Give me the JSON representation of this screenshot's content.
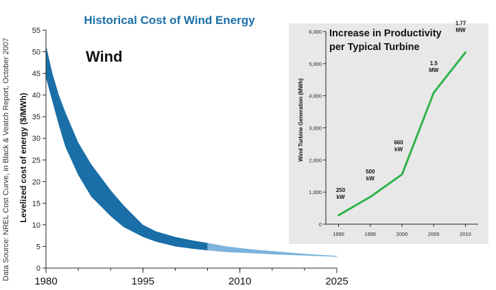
{
  "source_note": "Data Source: NREL Cost Curve, in Black & Veatch Report, October 2007",
  "chart_data": [
    {
      "type": "area",
      "title": "Historical Cost of Wind Energy",
      "annotation": "Wind",
      "ylabel": "Levelized cost of energy ($/MWh)",
      "xlabel": "",
      "x_ticks": [
        "1980",
        "1995",
        "2010",
        "2025"
      ],
      "y_ticks": [
        "0",
        "5",
        "10",
        "15",
        "20",
        "25",
        "30",
        "35",
        "40",
        "45",
        "50",
        "55"
      ],
      "xlim": [
        1980,
        2025
      ],
      "ylim": [
        0,
        55
      ],
      "colors": {
        "historical": "#1a6fa8",
        "projected": "#7bb3dc",
        "title": "#1a6fa8"
      },
      "historical_until": 2005,
      "band": {
        "x": [
          1980,
          1981,
          1982,
          1983,
          1985,
          1987,
          1990,
          1992,
          1995,
          1997,
          2000,
          2003,
          2005,
          2008,
          2012,
          2016,
          2020,
          2025
        ],
        "upper": [
          51.5,
          45,
          40,
          36,
          29,
          24,
          18,
          14.5,
          10,
          8.5,
          7.2,
          6.3,
          5.8,
          5.0,
          4.3,
          3.8,
          3.3,
          2.8
        ],
        "lower": [
          44,
          38.5,
          33,
          28,
          21.5,
          16.5,
          12,
          9.5,
          7.2,
          6.1,
          5.0,
          4.4,
          4.1,
          3.7,
          3.4,
          3.1,
          2.9,
          2.6
        ]
      }
    },
    {
      "type": "line",
      "title": "Increase in Productivity per Typical Turbine",
      "title_lines": [
        "Increase in Productivity",
        "per Typical Turbine"
      ],
      "ylabel": "Wind Turbine Generation (MWh)",
      "x_ticks": [
        "1990",
        "1995",
        "2000",
        "2005",
        "2010"
      ],
      "y_ticks": [
        "0",
        "1,000",
        "2,000",
        "3,000",
        "4,000",
        "5,000",
        "6,000"
      ],
      "xlim": [
        1988,
        2012
      ],
      "ylim": [
        0,
        6000
      ],
      "line_color": "#2db34a",
      "panel_color": "#e8e8e8",
      "x": [
        1990,
        1995,
        2000,
        2005,
        2010
      ],
      "values": [
        280,
        850,
        1550,
        4100,
        5350
      ],
      "annotations": [
        {
          "x": 1990,
          "y": 280,
          "lines": [
            "250",
            "kW"
          ]
        },
        {
          "x": 1995,
          "y": 850,
          "lines": [
            "500",
            "kW"
          ]
        },
        {
          "x": 2000,
          "y": 1550,
          "lines": [
            "660",
            "kW"
          ]
        },
        {
          "x": 2005,
          "y": 4100,
          "lines": [
            "1.5",
            "MW"
          ]
        },
        {
          "x": 2010,
          "y": 5350,
          "lines": [
            "1.77",
            "MW"
          ]
        }
      ]
    }
  ]
}
